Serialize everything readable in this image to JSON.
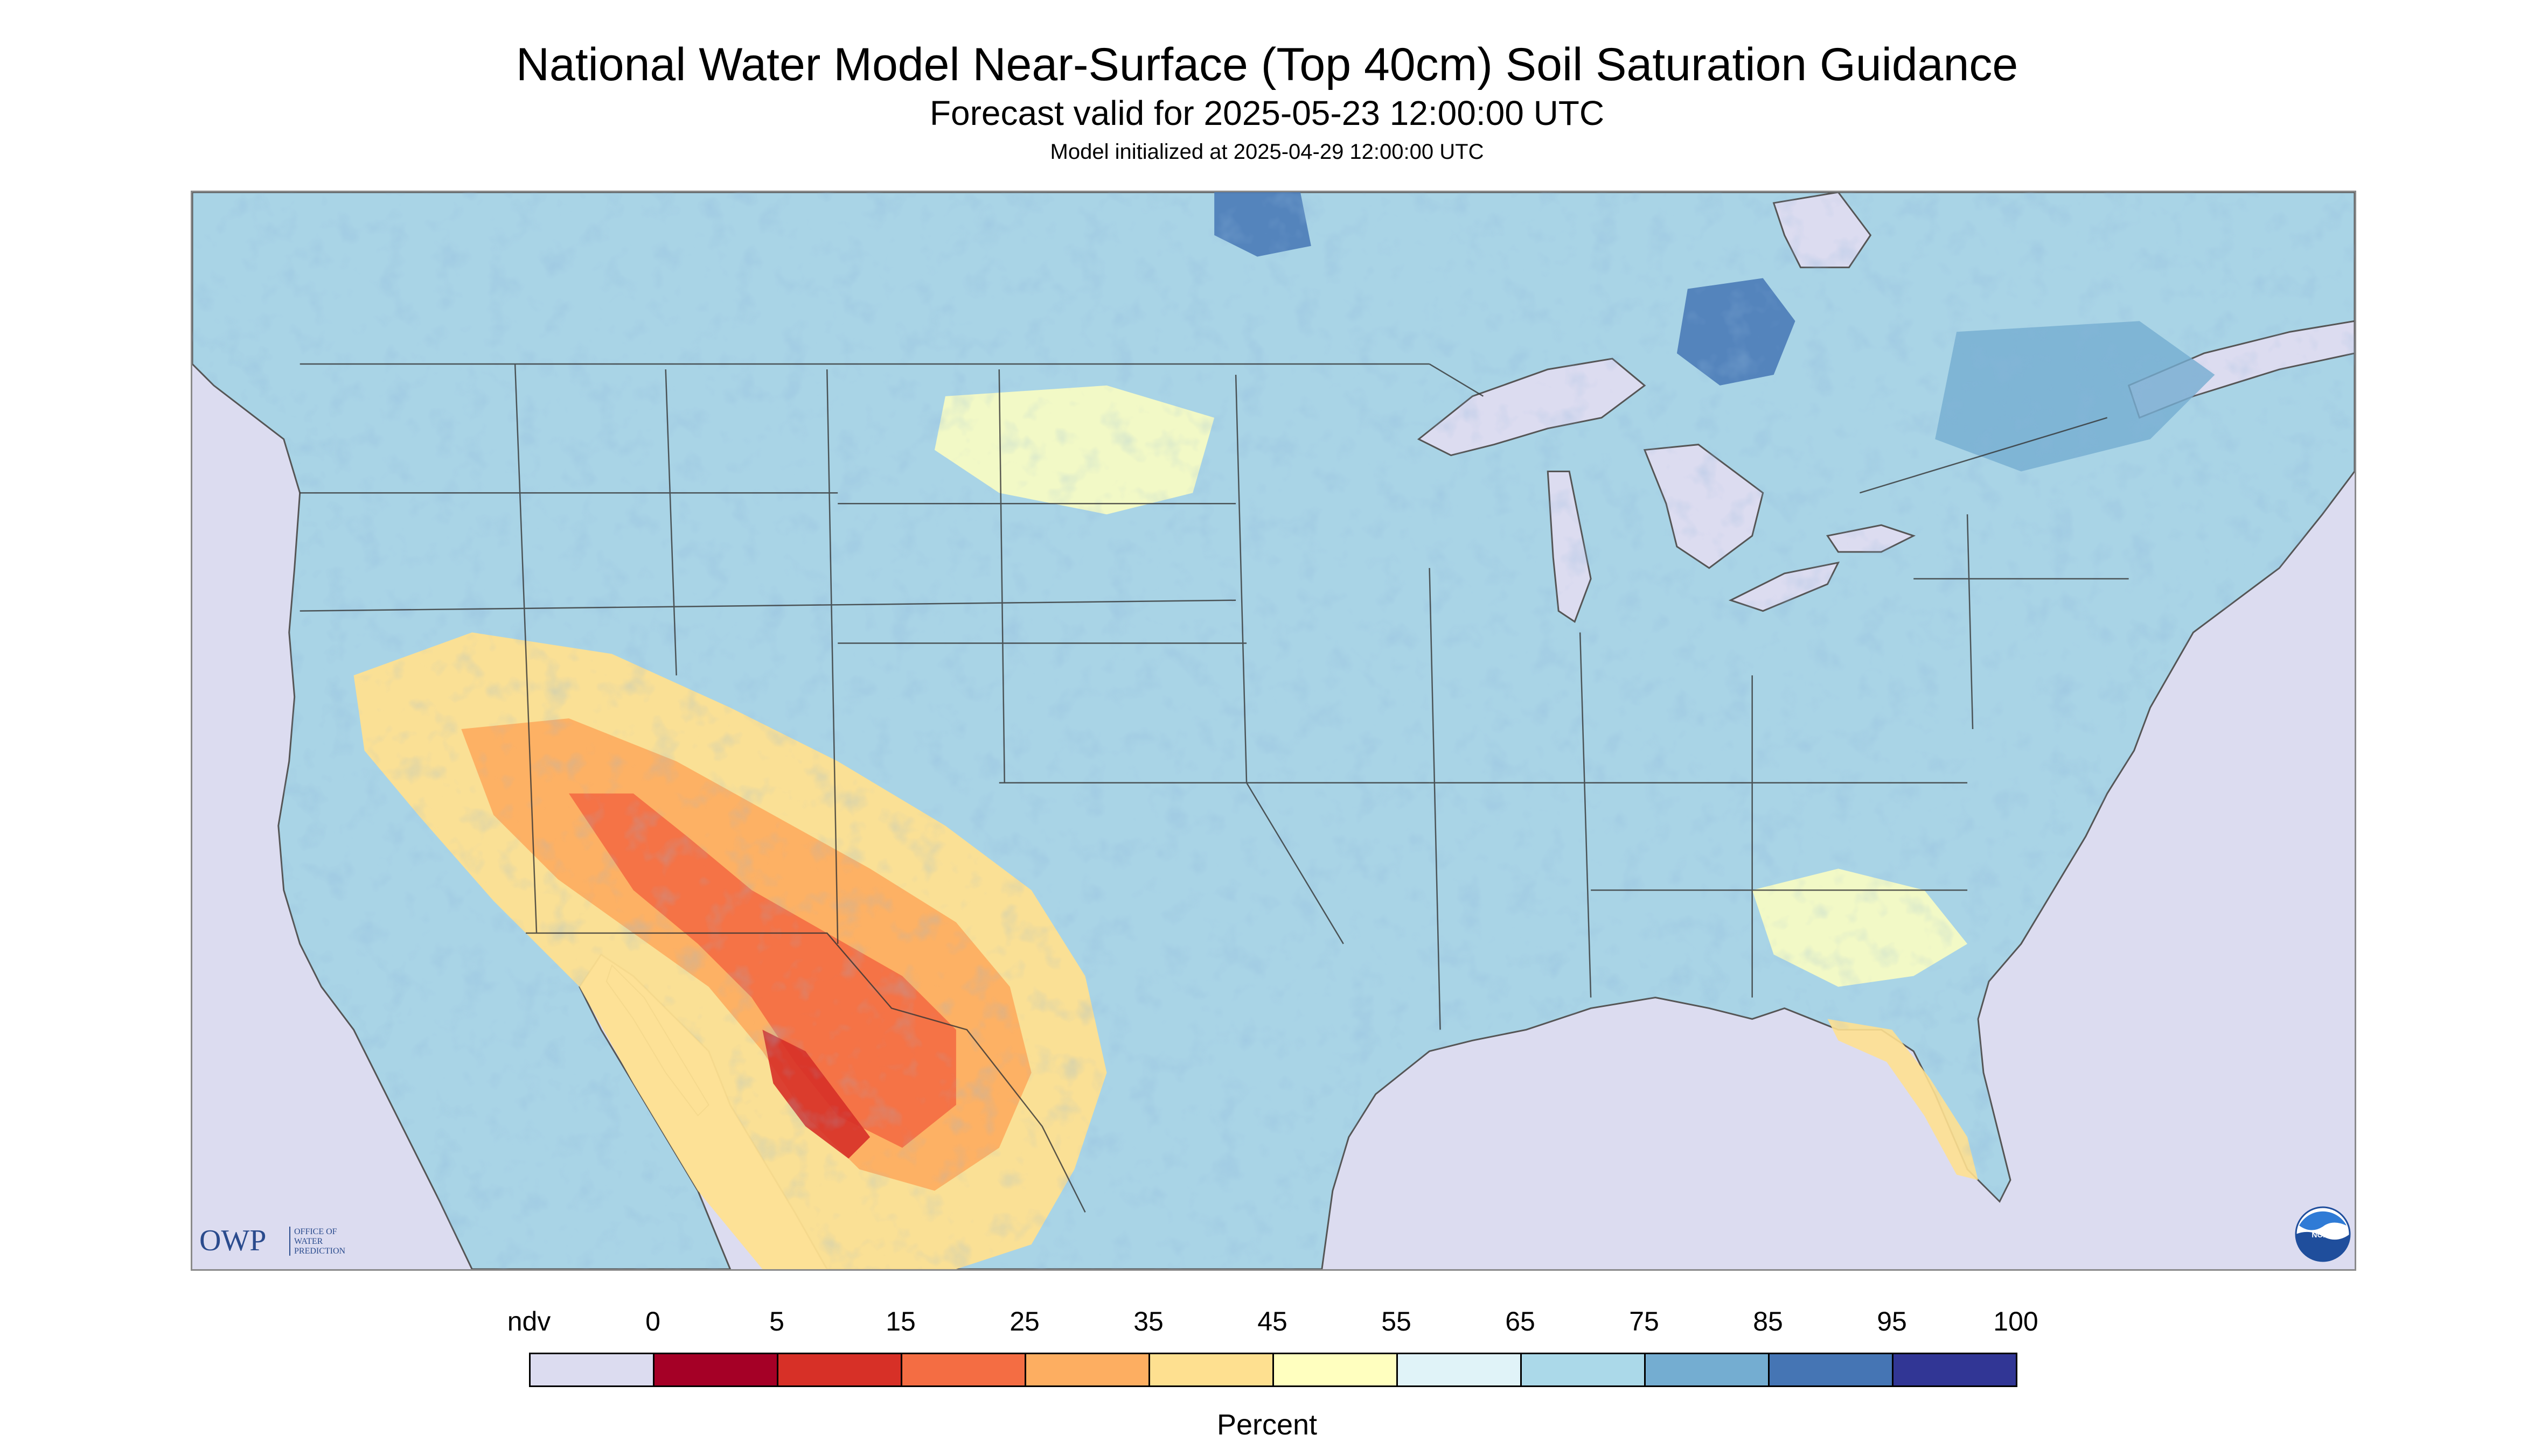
{
  "header": {
    "title": "National Water Model Near-Surface (Top 40cm) Soil Saturation Guidance",
    "subtitle": "Forecast valid for 2025-05-23 12:00:00 UTC",
    "init": "Model initialized at 2025-04-29 12:00:00 UTC"
  },
  "map": {
    "variable": "soil saturation",
    "colors": {
      "ocean": "#dcdcf0",
      "land_base": "#a9d4e6",
      "boundaries": "#444444"
    }
  },
  "logos": {
    "owp": {
      "letters": "OWP",
      "line1": "OFFICE OF",
      "line2": "WATER",
      "line3": "PREDICTION",
      "color": "#2a4b8d"
    },
    "noaa": {
      "text": "NOAA",
      "color": "#1f4e9c"
    }
  },
  "legend": {
    "units": "Percent",
    "labels": [
      "ndv",
      "0",
      "5",
      "15",
      "25",
      "35",
      "45",
      "55",
      "65",
      "75",
      "85",
      "95",
      "100"
    ],
    "colors": [
      "#dcdcf0",
      "#a50026",
      "#d73027",
      "#f46d43",
      "#fdae61",
      "#fee090",
      "#ffffbf",
      "#e0f3f8",
      "#abd9e9",
      "#74add1",
      "#4575b4",
      "#313695"
    ]
  }
}
